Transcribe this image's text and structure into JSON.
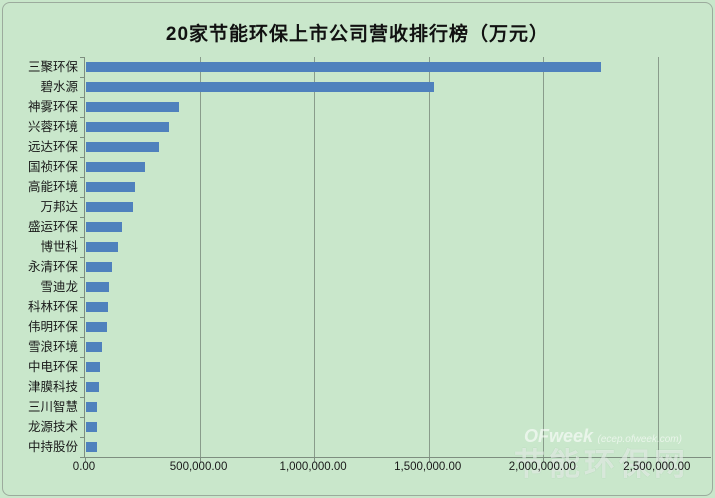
{
  "chart_data": {
    "type": "bar",
    "orientation": "horizontal",
    "title": "20家节能环保上市公司营收排行榜（万元）",
    "unit": "万元",
    "sorted": "descending",
    "grid": true,
    "legend": false,
    "categories": [
      "三聚环保",
      "碧水源",
      "神雾环保",
      "兴蓉环境",
      "远达环保",
      "国祯环保",
      "高能环境",
      "万邦达",
      "盛运环保",
      "博世科",
      "永清环保",
      "雪迪龙",
      "科林环保",
      "伟明环保",
      "雪浪环境",
      "中电环保",
      "津膜科技",
      "三川智慧",
      "龙源技术",
      "中持股份"
    ],
    "values": [
      2248000,
      1520000,
      404000,
      364000,
      317000,
      257000,
      216000,
      204000,
      155000,
      138000,
      113000,
      102000,
      95000,
      90000,
      70000,
      60000,
      57000,
      50000,
      48000,
      46000
    ],
    "xlabel": "",
    "ylabel": "",
    "xlim": [
      0,
      2500000
    ],
    "axis_range_rendered": [
      0,
      2732000
    ],
    "x_ticks": [
      0,
      500000,
      1000000,
      1500000,
      2000000,
      2500000
    ],
    "x_tick_labels": [
      "0.00",
      "500,000.00",
      "1,000,000.00",
      "1,500,000.00",
      "2,000,000.00",
      "2,500,000.00"
    ],
    "bar_color": "#4f81bd",
    "background_color": "#c9e7cb",
    "gridline_color": "#7e8e80"
  },
  "watermark": {
    "brand": "OFweek",
    "domain": "(ecep.ofweek.com)",
    "site_name": "节能环保网"
  }
}
